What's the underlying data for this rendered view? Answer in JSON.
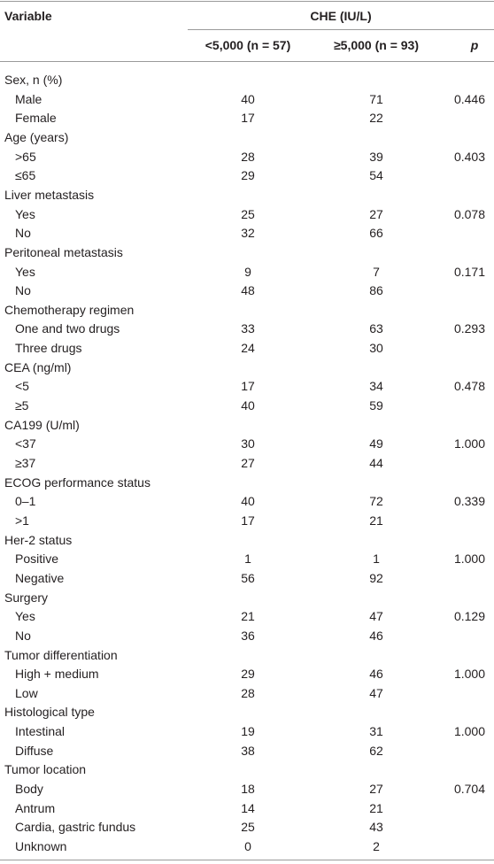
{
  "header": {
    "variable": "Variable",
    "group": "CHE (IU/L)",
    "columns": [
      "<5,000 (n = 57)",
      "≥5,000 (n = 93)",
      "p"
    ]
  },
  "groups": [
    {
      "label": "Sex, n (%)",
      "rows": [
        [
          "Male",
          "40",
          "71",
          "0.446"
        ],
        [
          "Female",
          "17",
          "22"
        ]
      ]
    },
    {
      "label": "Age (years)",
      "rows": [
        [
          ">65",
          "28",
          "39",
          "0.403"
        ],
        [
          "≤65",
          "29",
          "54"
        ]
      ]
    },
    {
      "label": "Liver metastasis",
      "rows": [
        [
          "Yes",
          "25",
          "27",
          "0.078"
        ],
        [
          "No",
          "32",
          "66"
        ]
      ]
    },
    {
      "label": "Peritoneal metastasis",
      "rows": [
        [
          "Yes",
          "9",
          "7",
          "0.171"
        ],
        [
          "No",
          "48",
          "86"
        ]
      ]
    },
    {
      "label": "Chemotherapy regimen",
      "rows": [
        [
          "One and two drugs",
          "33",
          "63",
          "0.293"
        ],
        [
          "Three drugs",
          "24",
          "30"
        ]
      ]
    },
    {
      "label": "CEA (ng/ml)",
      "rows": [
        [
          "<5",
          "17",
          "34",
          "0.478"
        ],
        [
          "≥5",
          "40",
          "59"
        ]
      ]
    },
    {
      "label": "CA199 (U/ml)",
      "rows": [
        [
          "<37",
          "30",
          "49",
          "1.000"
        ],
        [
          "≥37",
          "27",
          "44"
        ]
      ]
    },
    {
      "label": "ECOG performance status",
      "rows": [
        [
          "0–1",
          "40",
          "72",
          "0.339"
        ],
        [
          ">1",
          "17",
          "21"
        ]
      ]
    },
    {
      "label": "Her-2 status",
      "rows": [
        [
          "Positive",
          "1",
          "1",
          "1.000"
        ],
        [
          "Negative",
          "56",
          "92"
        ]
      ]
    },
    {
      "label": "Surgery",
      "rows": [
        [
          "Yes",
          "21",
          "47",
          "0.129"
        ],
        [
          "No",
          "36",
          "46"
        ]
      ]
    },
    {
      "label": "Tumor differentiation",
      "rows": [
        [
          "High + medium",
          "29",
          "46",
          "1.000"
        ],
        [
          "Low",
          "28",
          "47"
        ]
      ]
    },
    {
      "label": "Histological type",
      "rows": [
        [
          "Intestinal",
          "19",
          "31",
          "1.000"
        ],
        [
          "Diffuse",
          "38",
          "62"
        ]
      ]
    },
    {
      "label": "Tumor location",
      "rows": [
        [
          "Body",
          "18",
          "27",
          "0.704"
        ],
        [
          "Antrum",
          "14",
          "21"
        ],
        [
          "Cardia, gastric fundus",
          "25",
          "43"
        ],
        [
          "Unknown",
          "0",
          "2"
        ]
      ]
    }
  ]
}
